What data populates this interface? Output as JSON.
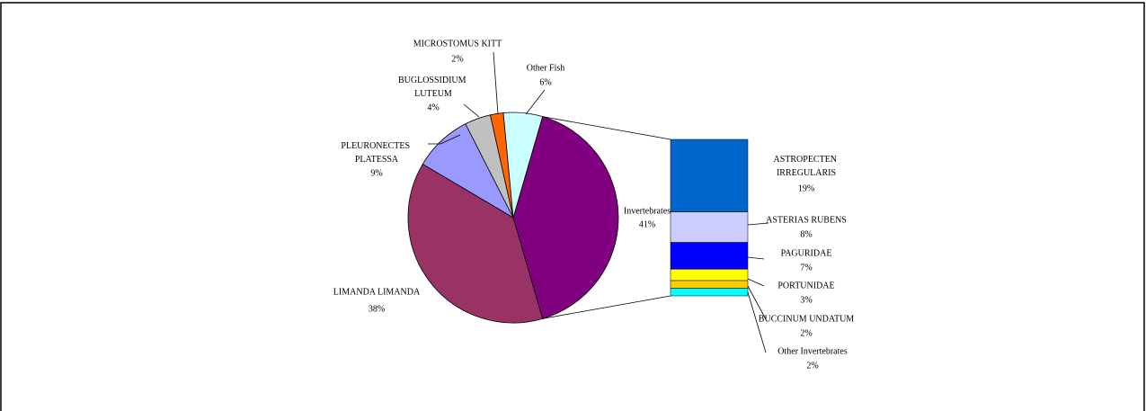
{
  "chart_data": {
    "type": "bar-of-pie",
    "pie": {
      "categories": [
        "Invertebrates",
        "LIMANDA LIMANDA",
        "PLEURONECTES PLATESSA",
        "BUGLOSSIDIUM LUTEUM",
        "MICROSTOMUS KITT",
        "Other Fish"
      ],
      "values": [
        41,
        38,
        9,
        4,
        2,
        6
      ],
      "value_labels": [
        "41%",
        "38%",
        "9%",
        "4%",
        "2%",
        "6%"
      ],
      "colors": [
        "#800080",
        "#993366",
        "#9999ff",
        "#c0c0c0",
        "#ff6600",
        "#ccffff"
      ]
    },
    "bar": {
      "categories": [
        "ASTROPECTEN IRREGULARIS",
        "ASTERIAS RUBENS",
        "PAGURIDAE",
        "PORTUNIDAE",
        "BUCCINUM UNDATUM",
        "Other Invertebrates"
      ],
      "values": [
        19,
        8,
        7,
        3,
        2,
        2
      ],
      "value_labels": [
        "19%",
        "8%",
        "7%",
        "3%",
        "2%",
        "2%"
      ],
      "colors": [
        "#0066cc",
        "#ccccff",
        "#0000ff",
        "#ffff00",
        "#ffcc00",
        "#00ffff"
      ]
    }
  }
}
